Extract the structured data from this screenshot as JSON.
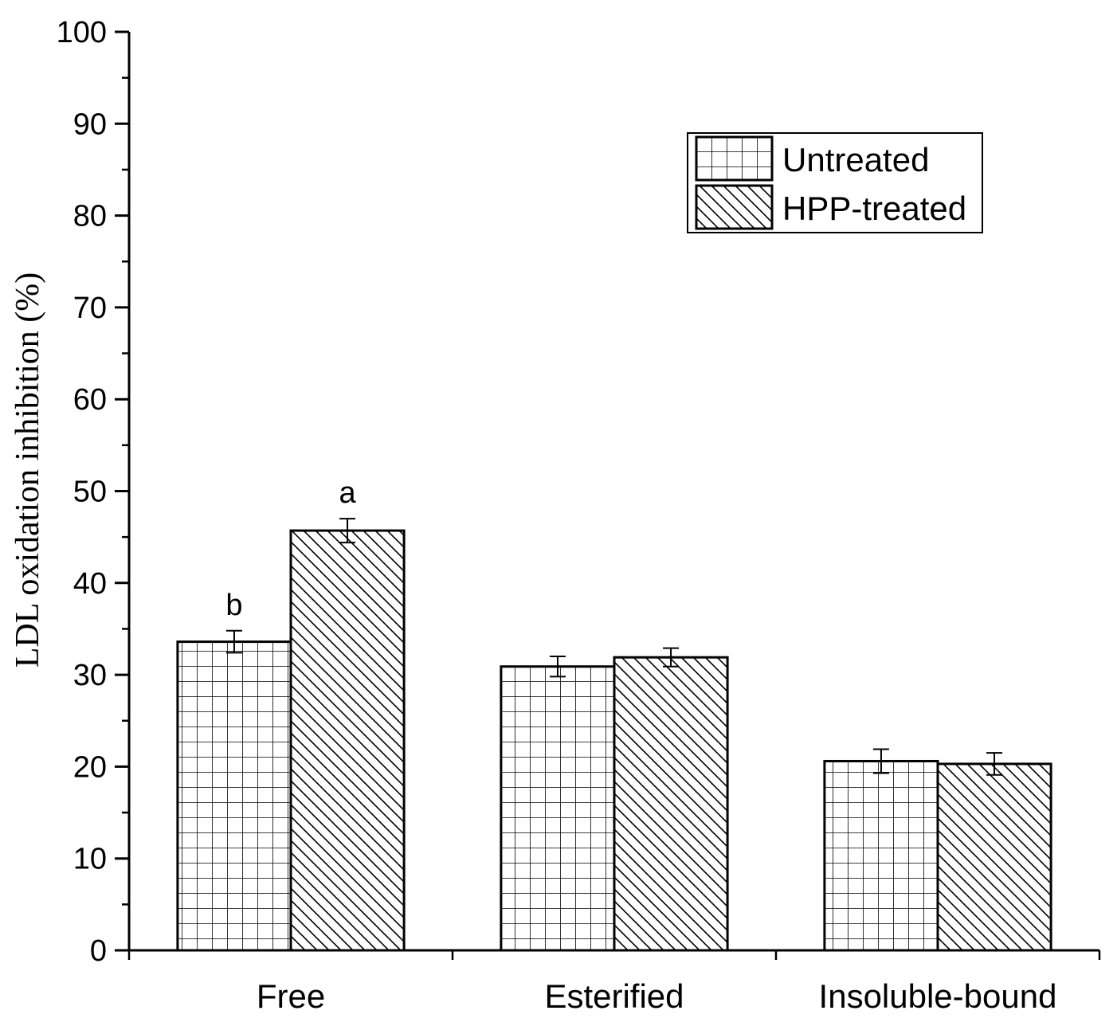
{
  "chart_data": {
    "type": "bar",
    "title": "",
    "xlabel": "",
    "ylabel": "LDL oxidation inhibition (%)",
    "ylim": [
      0,
      100
    ],
    "yticks": [
      "0",
      "10",
      "20",
      "30",
      "40",
      "50",
      "60",
      "70",
      "80",
      "90",
      "100"
    ],
    "categories": [
      "Free",
      "Esterified",
      "Insoluble-bound"
    ],
    "series": [
      {
        "name": "Untreated",
        "pattern": "grid",
        "values": [
          33.6,
          30.9,
          20.6
        ],
        "errors": [
          1.2,
          1.1,
          1.3
        ],
        "annotations": [
          "b",
          "",
          ""
        ]
      },
      {
        "name": "HPP-treated",
        "pattern": "diagonal",
        "values": [
          45.7,
          31.9,
          20.3
        ],
        "errors": [
          1.3,
          1.0,
          1.2
        ],
        "annotations": [
          "a",
          "",
          ""
        ]
      }
    ],
    "legend_position": "top-right",
    "grid": false,
    "colors": {
      "bar_fill": "#ffffff",
      "pattern": "#000000",
      "axis": "#000000"
    }
  }
}
